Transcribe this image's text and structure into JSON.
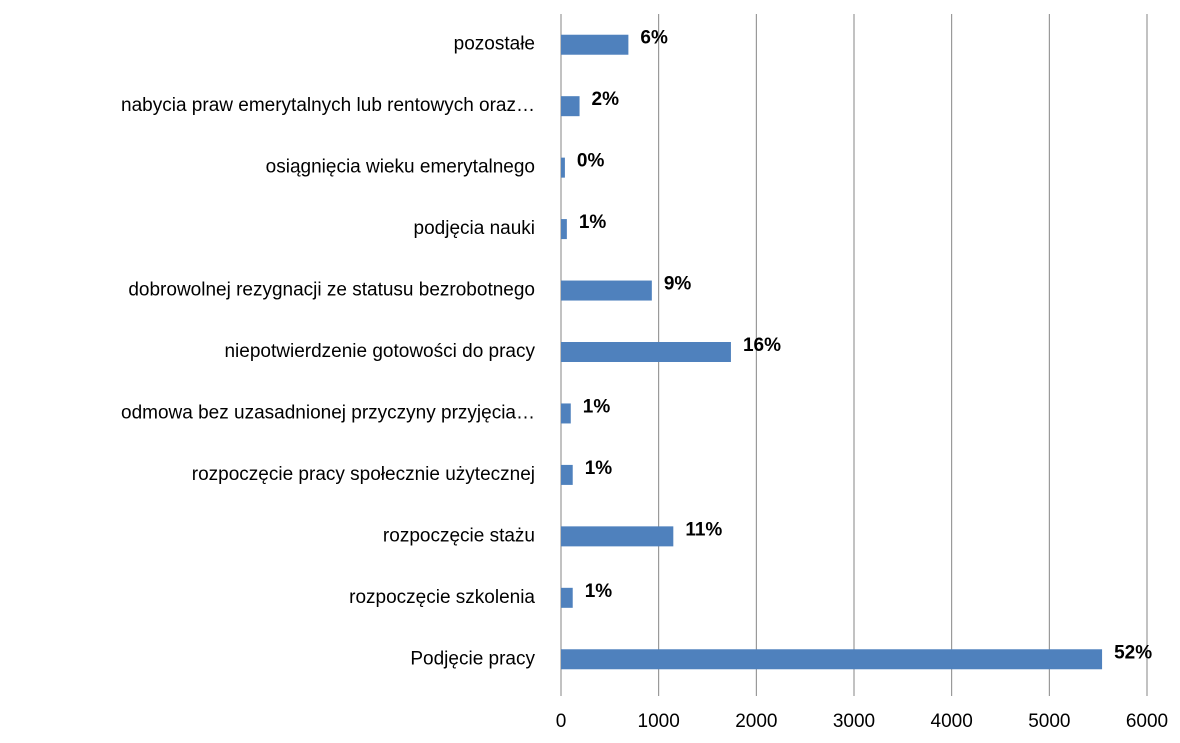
{
  "chart_data": {
    "type": "hbar",
    "categories": [
      "pozostałe",
      "nabycia praw emerytalnych lub rentowych oraz…",
      "osiągnięcia wieku emerytalnego",
      "podjęcia nauki",
      "dobrowolnej rezygnacji ze statusu bezrobotnego",
      "niepotwierdzenie gotowości do pracy",
      "odmowa bez uzasadnionej przyczyny przyjęcia…",
      "rozpoczęcie pracy społecznie użytecznej",
      "rozpoczęcie stażu",
      "rozpoczęcie szkolenia",
      "Podjęcie pracy"
    ],
    "values": [
      690,
      190,
      40,
      60,
      930,
      1740,
      100,
      120,
      1150,
      120,
      5540
    ],
    "share_labels": [
      "6%",
      "2%",
      "0%",
      "1%",
      "9%",
      "16%",
      "1%",
      "1%",
      "11%",
      "1%",
      "52%"
    ],
    "color": "#4f81bd",
    "xlim": [
      0,
      6000
    ],
    "xticks": [
      0,
      1000,
      2000,
      3000,
      4000,
      5000,
      6000
    ],
    "grid": true
  }
}
